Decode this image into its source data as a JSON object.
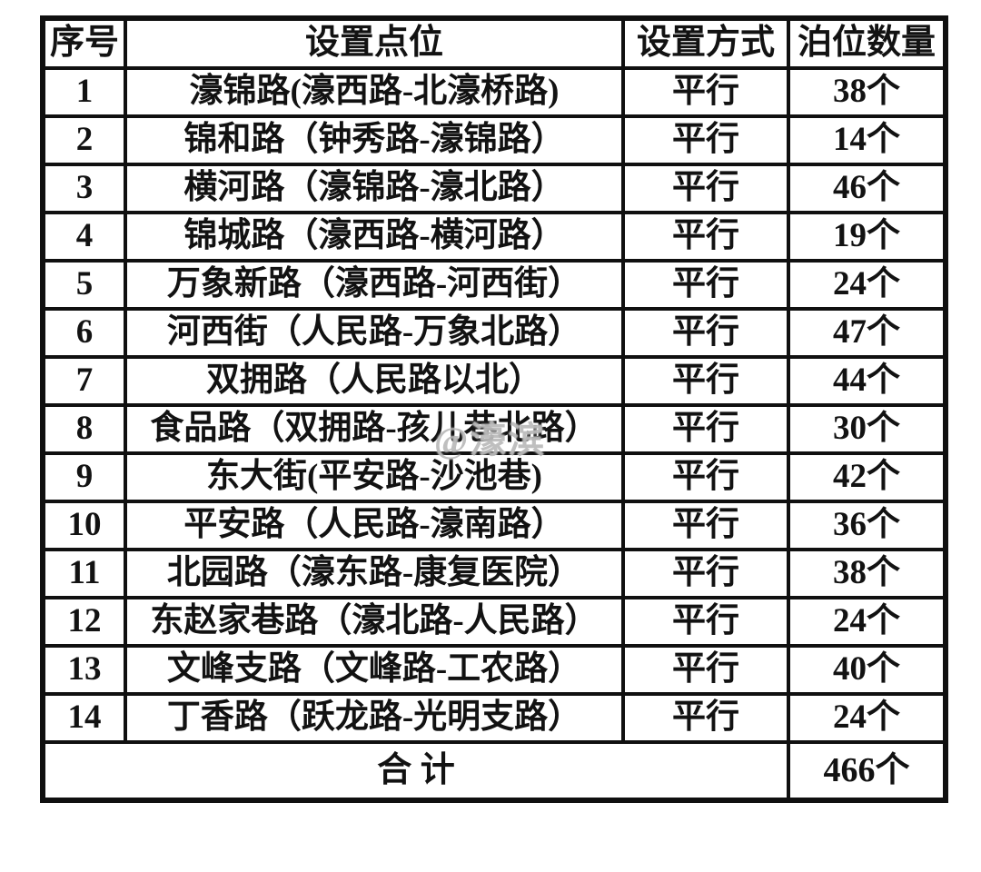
{
  "watermark": "@濠滨",
  "colors": {
    "background": "#ffffff",
    "border": "#101010",
    "text": "#121212",
    "watermark": "#aaaaaa"
  },
  "table": {
    "headers": {
      "no": "序号",
      "location": "设置点位",
      "method": "设置方式",
      "count": "泊位数量"
    },
    "rows": [
      {
        "no": "1",
        "location": "濠锦路(濠西路-北濠桥路)",
        "method": "平行",
        "count": "38个"
      },
      {
        "no": "2",
        "location": "锦和路（钟秀路-濠锦路）",
        "method": "平行",
        "count": "14个"
      },
      {
        "no": "3",
        "location": "横河路（濠锦路-濠北路）",
        "method": "平行",
        "count": "46个"
      },
      {
        "no": "4",
        "location": "锦城路（濠西路-横河路）",
        "method": "平行",
        "count": "19个"
      },
      {
        "no": "5",
        "location": "万象新路（濠西路-河西街）",
        "method": "平行",
        "count": "24个"
      },
      {
        "no": "6",
        "location": "河西街（人民路-万象北路）",
        "method": "平行",
        "count": "47个"
      },
      {
        "no": "7",
        "location": "双拥路（人民路以北）",
        "method": "平行",
        "count": "44个"
      },
      {
        "no": "8",
        "location": "食品路（双拥路-孩儿巷北路）",
        "method": "平行",
        "count": "30个"
      },
      {
        "no": "9",
        "location": "东大街(平安路-沙池巷)",
        "method": "平行",
        "count": "42个"
      },
      {
        "no": "10",
        "location": "平安路（人民路-濠南路）",
        "method": "平行",
        "count": "36个"
      },
      {
        "no": "11",
        "location": "北园路（濠东路-康复医院）",
        "method": "平行",
        "count": "38个"
      },
      {
        "no": "12",
        "location": "东赵家巷路（濠北路-人民路）",
        "method": "平行",
        "count": "24个"
      },
      {
        "no": "13",
        "location": "文峰支路（文峰路-工农路）",
        "method": "平行",
        "count": "40个"
      },
      {
        "no": "14",
        "location": "丁香路（跃龙路-光明支路）",
        "method": "平行",
        "count": "24个"
      }
    ],
    "total": {
      "label": "合  计",
      "value": "466个"
    }
  }
}
